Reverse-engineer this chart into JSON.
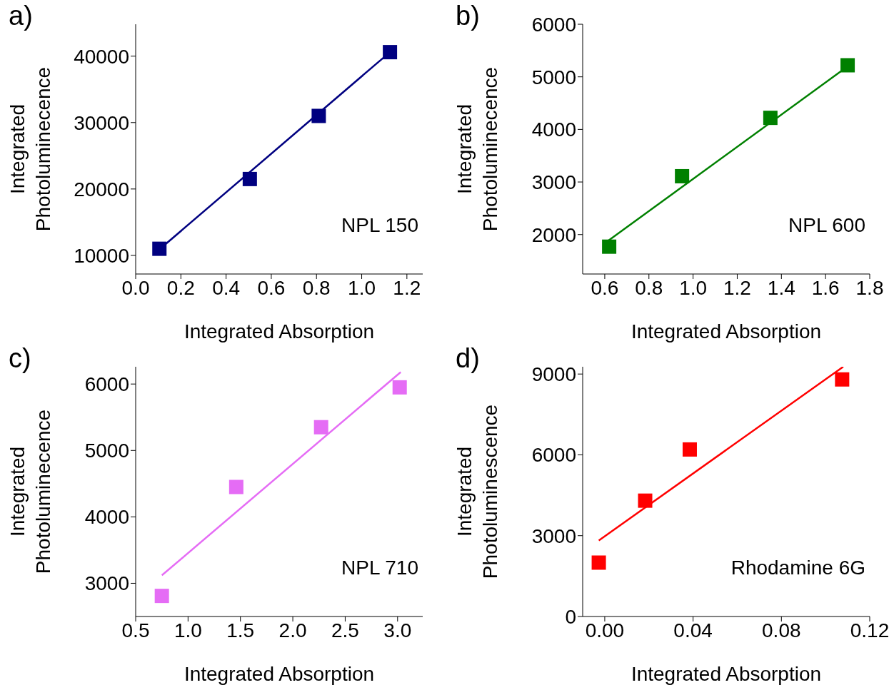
{
  "chart_data": [
    {
      "type": "scatter",
      "title": "a)",
      "xlabel": "Integrated Absorption",
      "ylabel": "Integrated Photoluminecence",
      "annotations": [
        "NPL 150"
      ],
      "marker": "square",
      "xlim": [
        0,
        1.27
      ],
      "ylim": [
        7200,
        44800
      ],
      "xticks": [
        {
          "value": 0,
          "label": "0.0"
        },
        0.2,
        0.4,
        0.6,
        0.8,
        {
          "value": 1,
          "label": "1.0"
        },
        1.2
      ],
      "yticks": [
        10000,
        20000,
        30000,
        40000
      ],
      "x": [
        0.105,
        0.505,
        0.81,
        1.125
      ],
      "series": [
        {
          "color": "#000080",
          "values": [
            11000,
            21500,
            31000,
            40600
          ]
        },
        {
          "type": "line",
          "marker": "none",
          "color": "#000080",
          "x": [
            0.105,
            1.125
          ],
          "values": [
            10900,
            40600
          ]
        }
      ]
    },
    {
      "type": "scatter",
      "title": "b)",
      "xlabel": "Integrated Absorption",
      "ylabel": "Integrated Photoluminecence",
      "annotations": [
        "NPL 600"
      ],
      "marker": "square",
      "xlim": [
        0.5,
        1.8
      ],
      "ylim": [
        1250,
        6000
      ],
      "xticks": [
        0.6,
        0.8,
        {
          "value": 1,
          "label": "1.0"
        },
        1.2,
        1.4,
        1.6,
        1.8
      ],
      "yticks": [
        2000,
        3000,
        4000,
        5000,
        6000
      ],
      "x": [
        0.62,
        0.95,
        1.35,
        1.7
      ],
      "series": [
        {
          "color": "#008000",
          "values": [
            1770,
            3110,
            4220,
            5220
          ]
        },
        {
          "type": "line",
          "marker": "none",
          "color": "#008000",
          "x": [
            0.615,
            1.7
          ],
          "values": [
            1880,
            5200
          ]
        }
      ]
    },
    {
      "type": "scatter",
      "title": "c)",
      "xlabel": "Integrated Absorption",
      "ylabel": "Integrated Photoluminecence",
      "annotations": [
        "NPL 710"
      ],
      "marker": "square",
      "xlim": [
        0.5,
        3.24
      ],
      "ylim": [
        2500,
        6260
      ],
      "xticks": [
        0.5,
        {
          "value": 1,
          "label": "1.0"
        },
        1.5,
        {
          "value": 2,
          "label": "2.0"
        },
        2.5,
        {
          "value": 3,
          "label": "3.0"
        }
      ],
      "yticks": [
        3000,
        4000,
        5000,
        6000
      ],
      "x": [
        0.75,
        1.46,
        2.27,
        3.02
      ],
      "series": [
        {
          "color": "#e56cf5",
          "values": [
            2810,
            4450,
            5350,
            5950
          ]
        },
        {
          "type": "line",
          "marker": "none",
          "color": "#e56cf5",
          "x": [
            0.75,
            3.03
          ],
          "values": [
            3120,
            6180
          ]
        }
      ]
    },
    {
      "type": "scatter",
      "title": "d)",
      "xlabel": "Integrated Absorption",
      "ylabel": "Integrated Photoluminescence",
      "annotations": [
        "Rhodamine 6G"
      ],
      "marker": "square",
      "xlim": [
        -0.01,
        0.12
      ],
      "ylim": [
        0,
        9270
      ],
      "xticks": [
        {
          "value": 0,
          "label": "0.00"
        },
        0.04,
        0.08,
        0.12
      ],
      "yticks": [
        0,
        3000,
        6000,
        9000
      ],
      "x": [
        -0.0027,
        0.0183,
        0.0385,
        0.1075
      ],
      "series": [
        {
          "color": "#ff0000",
          "values": [
            2000,
            4300,
            6200,
            8800
          ]
        },
        {
          "type": "line",
          "marker": "none",
          "color": "#ff0000",
          "x": [
            -0.0027,
            0.108
          ],
          "values": [
            2820,
            9270
          ]
        }
      ]
    }
  ]
}
